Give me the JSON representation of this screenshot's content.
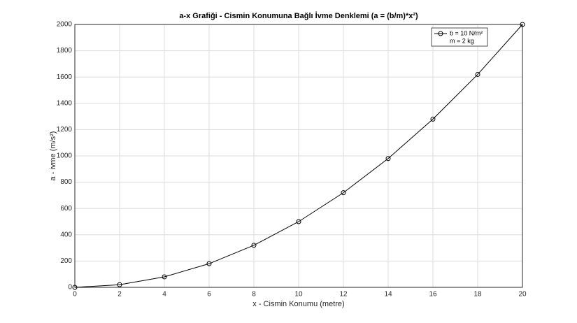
{
  "chart_data": {
    "type": "line",
    "title": "a-x Grafiği - Cismin Konumuna Bağlı İvme Denklemi (a = (b/m)*x²)",
    "x_label": "x - Cismin Konumu (metre)",
    "y_label": "a - ivme (m/s²)",
    "x": [
      0,
      2,
      4,
      6,
      8,
      10,
      12,
      14,
      16,
      18,
      20
    ],
    "series": [
      {
        "name": "b = 10 N/m²",
        "color": "#000000",
        "values": [
          0,
          20,
          80,
          180,
          320,
          500,
          720,
          980,
          1280,
          1620,
          2000
        ]
      }
    ],
    "legend_second_line": "m = 2 kg",
    "xlim": [
      0,
      20
    ],
    "xticks": [
      0,
      2,
      4,
      6,
      8,
      10,
      12,
      14,
      16,
      18,
      20
    ],
    "ylim": [
      0,
      2000
    ],
    "yticks": [
      0,
      200,
      400,
      600,
      800,
      1000,
      1200,
      1400,
      1600,
      1800,
      2000
    ],
    "grid": true,
    "legend": "northeast"
  }
}
